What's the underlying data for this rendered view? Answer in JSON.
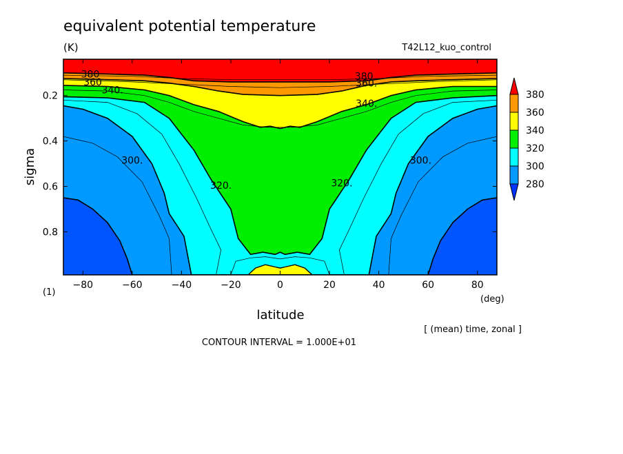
{
  "chart_data": {
    "type": "heatmap",
    "title": "equivalent potential temperature",
    "units": "(K)",
    "run_name": "T42L12_kuo_control",
    "xlabel": "latitude",
    "x_unit": "(deg)",
    "ylabel": "sigma",
    "y_unit": "(1)",
    "xlim": [
      -87.9,
      87.9
    ],
    "ylim": [
      0.04,
      0.99
    ],
    "y_reversed": true,
    "x_ticks": [
      -80,
      -60,
      -40,
      -20,
      0,
      20,
      40,
      60,
      80
    ],
    "x_tick_labels": [
      "−80",
      "−60",
      "−40",
      "−20",
      "0",
      "20",
      "40",
      "60",
      "80"
    ],
    "y_ticks": [
      0.2,
      0.4,
      0.6,
      0.8
    ],
    "y_tick_labels": [
      "0.2",
      "0.4",
      "0.6",
      "0.8"
    ],
    "note": "[ (mean) time, zonal ]",
    "contour_interval_text": "CONTOUR INTERVAL = 1.000E+01",
    "contour_labels": [
      {
        "text": "380",
        "lat": -77,
        "sigma": 0.12
      },
      {
        "text": "360",
        "lat": -76,
        "sigma": 0.155
      },
      {
        "text": "340.",
        "lat": -68,
        "sigma": 0.19
      },
      {
        "text": "300.",
        "lat": -60,
        "sigma": 0.5
      },
      {
        "text": "320.",
        "lat": -24,
        "sigma": 0.61
      },
      {
        "text": "380",
        "lat": 34,
        "sigma": 0.13
      },
      {
        "text": "360.",
        "lat": 35,
        "sigma": 0.16
      },
      {
        "text": "340.",
        "lat": 35,
        "sigma": 0.25
      },
      {
        "text": "320.",
        "lat": 25,
        "sigma": 0.6
      },
      {
        "text": "300.",
        "lat": 57,
        "sigma": 0.5
      }
    ],
    "levels": [
      280,
      300,
      320,
      340,
      360,
      380
    ],
    "colorbar": {
      "labels": [
        "380",
        "360",
        "340",
        "320",
        "300",
        "280"
      ],
      "colors": [
        "#ff0000",
        "#ff9900",
        "#ffff00",
        "#00ee00",
        "#00ffff",
        "#0099ff",
        "#0033ff"
      ]
    },
    "bands": [
      {
        "level": 280,
        "color": "#0055ff",
        "boundary": [
          [
            -88,
            0.65
          ],
          [
            -82,
            0.66
          ],
          [
            -76,
            0.7
          ],
          [
            -70,
            0.76
          ],
          [
            -65,
            0.84
          ],
          [
            -62,
            0.92
          ],
          [
            -60,
            0.99
          ]
        ],
        "mirror": true
      },
      {
        "level": 300,
        "color": "#0099ff",
        "boundary": [
          [
            -88,
            0.245
          ],
          [
            -80,
            0.26
          ],
          [
            -70,
            0.3
          ],
          [
            -60,
            0.38
          ],
          [
            -52,
            0.5
          ],
          [
            -47,
            0.63
          ],
          [
            -45,
            0.72
          ],
          [
            -39,
            0.82
          ],
          [
            -36,
            0.99
          ]
        ],
        "mirror": true
      },
      {
        "level": 320,
        "color": "#00ffff",
        "boundary": [
          [
            -88,
            0.205
          ],
          [
            -70,
            0.21
          ],
          [
            -55,
            0.23
          ],
          [
            -45,
            0.3
          ],
          [
            -35,
            0.44
          ],
          [
            -28,
            0.57
          ],
          [
            -20,
            0.7
          ],
          [
            -17,
            0.83
          ],
          [
            -12,
            0.9
          ],
          [
            -7,
            0.89
          ],
          [
            -2,
            0.9
          ],
          [
            0,
            0.89
          ],
          [
            2,
            0.9
          ],
          [
            7,
            0.89
          ],
          [
            12,
            0.9
          ],
          [
            17,
            0.83
          ],
          [
            20,
            0.7
          ],
          [
            28,
            0.57
          ],
          [
            35,
            0.44
          ],
          [
            45,
            0.3
          ],
          [
            55,
            0.23
          ],
          [
            70,
            0.21
          ],
          [
            88,
            0.2
          ]
        ],
        "mirror": false
      },
      {
        "level": 340,
        "color": "#00ee00",
        "boundary": [
          [
            -88,
            0.155
          ],
          [
            -70,
            0.16
          ],
          [
            -55,
            0.175
          ],
          [
            -45,
            0.2
          ],
          [
            -35,
            0.24
          ],
          [
            -25,
            0.27
          ],
          [
            -15,
            0.315
          ],
          [
            -8,
            0.34
          ],
          [
            -4,
            0.335
          ],
          [
            0,
            0.345
          ],
          [
            4,
            0.335
          ],
          [
            8,
            0.34
          ],
          [
            15,
            0.315
          ],
          [
            25,
            0.27
          ],
          [
            35,
            0.24
          ],
          [
            45,
            0.2
          ],
          [
            55,
            0.175
          ],
          [
            70,
            0.16
          ],
          [
            88,
            0.16
          ]
        ],
        "mirror": false
      },
      {
        "level": 360,
        "color": "#ffff00",
        "boundary": [
          [
            -88,
            0.125
          ],
          [
            -70,
            0.13
          ],
          [
            -55,
            0.135
          ],
          [
            -45,
            0.145
          ],
          [
            -35,
            0.16
          ],
          [
            -25,
            0.18
          ],
          [
            -15,
            0.195
          ],
          [
            0,
            0.2
          ],
          [
            15,
            0.195
          ],
          [
            25,
            0.18
          ],
          [
            35,
            0.155
          ],
          [
            45,
            0.14
          ],
          [
            55,
            0.135
          ],
          [
            70,
            0.13
          ],
          [
            88,
            0.125
          ]
        ],
        "mirror": false
      },
      {
        "level": 380,
        "color": "#ff9900",
        "boundary": [
          [
            -88,
            0.1
          ],
          [
            -70,
            0.105
          ],
          [
            -55,
            0.11
          ],
          [
            -45,
            0.12
          ],
          [
            -35,
            0.135
          ],
          [
            -20,
            0.14
          ],
          [
            0,
            0.14
          ],
          [
            20,
            0.14
          ],
          [
            35,
            0.135
          ],
          [
            45,
            0.12
          ],
          [
            55,
            0.11
          ],
          [
            70,
            0.105
          ],
          [
            88,
            0.1
          ]
        ],
        "mirror": false
      },
      {
        "level": 400,
        "color": "#ff0000",
        "boundary": [
          [
            -88,
            0.04
          ],
          [
            88,
            0.04
          ]
        ],
        "mirror": false
      }
    ],
    "upper_floor_color": "#ff0000",
    "bottom_bump": {
      "level": 340,
      "color": "#ffff00",
      "boundary": [
        [
          -13,
          0.99
        ],
        [
          -10,
          0.96
        ],
        [
          -6,
          0.945
        ],
        [
          -2,
          0.955
        ],
        [
          0,
          0.96
        ],
        [
          2,
          0.955
        ],
        [
          6,
          0.945
        ],
        [
          10,
          0.96
        ],
        [
          13,
          0.99
        ]
      ]
    },
    "thin_contours": [
      {
        "level": 290,
        "points": [
          [
            -88,
            0.38
          ],
          [
            -76,
            0.41
          ],
          [
            -66,
            0.47
          ],
          [
            -56,
            0.58
          ],
          [
            -49,
            0.73
          ],
          [
            -45,
            0.83
          ],
          [
            -44,
            0.99
          ]
        ],
        "mirror": true
      },
      {
        "level": 310,
        "points": [
          [
            -88,
            0.22
          ],
          [
            -70,
            0.23
          ],
          [
            -58,
            0.28
          ],
          [
            -48,
            0.37
          ],
          [
            -41,
            0.5
          ],
          [
            -34,
            0.65
          ],
          [
            -28,
            0.79
          ],
          [
            -24,
            0.88
          ],
          [
            -26,
            0.99
          ]
        ],
        "mirror": true
      },
      {
        "level": 330,
        "points": [
          [
            -88,
            0.175
          ],
          [
            -70,
            0.18
          ],
          [
            -55,
            0.2
          ],
          [
            -45,
            0.23
          ],
          [
            -35,
            0.27
          ],
          [
            -25,
            0.3
          ],
          [
            -15,
            0.33
          ],
          [
            -5,
            0.34
          ],
          [
            0,
            0.34
          ],
          [
            5,
            0.34
          ],
          [
            15,
            0.33
          ],
          [
            25,
            0.3
          ],
          [
            35,
            0.27
          ],
          [
            45,
            0.23
          ],
          [
            55,
            0.2
          ],
          [
            70,
            0.18
          ],
          [
            88,
            0.175
          ]
        ],
        "mirror": false
      },
      {
        "level": 330,
        "points": [
          [
            -20,
            0.99
          ],
          [
            -18,
            0.93
          ],
          [
            -12,
            0.915
          ],
          [
            -6,
            0.91
          ],
          [
            0,
            0.92
          ],
          [
            6,
            0.91
          ],
          [
            12,
            0.915
          ],
          [
            18,
            0.93
          ],
          [
            20,
            0.99
          ]
        ],
        "mirror": false
      },
      {
        "level": 350,
        "points": [
          [
            -88,
            0.13
          ],
          [
            -60,
            0.14
          ],
          [
            -40,
            0.15
          ],
          [
            -20,
            0.16
          ],
          [
            0,
            0.165
          ],
          [
            20,
            0.16
          ],
          [
            40,
            0.15
          ],
          [
            60,
            0.14
          ],
          [
            88,
            0.13
          ]
        ],
        "mirror": false
      },
      {
        "level": 370,
        "points": [
          [
            -88,
            0.11
          ],
          [
            -60,
            0.115
          ],
          [
            -40,
            0.125
          ],
          [
            -20,
            0.13
          ],
          [
            0,
            0.13
          ],
          [
            20,
            0.13
          ],
          [
            40,
            0.125
          ],
          [
            60,
            0.115
          ],
          [
            88,
            0.11
          ]
        ],
        "mirror": false
      }
    ]
  }
}
